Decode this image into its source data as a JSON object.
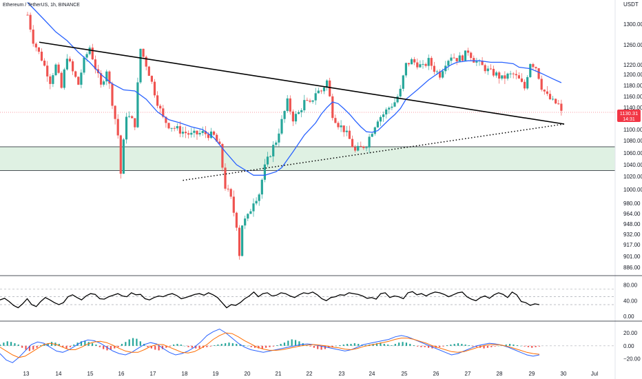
{
  "header": {
    "symbol_title": "Ethereum / TetherUS, 1h, BINANCE",
    "currency": "USDT"
  },
  "price_badge": {
    "price": "1130.31",
    "countdown": "14:31",
    "color": "#f23645"
  },
  "colors": {
    "up": "#26a69a",
    "down": "#ef5350",
    "ma": "#2962ff",
    "zone_fill": "#dff1e3",
    "trendline": "#000000",
    "rsi_line": "#000000",
    "macd_line": "#2962ff",
    "signal_line": "#ff6d00"
  },
  "chart_data": [
    {
      "type": "candlestick",
      "name": "price",
      "y_ticks": [
        "1300.00",
        "1260.00",
        "1220.00",
        "1200.00",
        "1180.00",
        "1160.00",
        "1140.00",
        "1100.00",
        "1080.00",
        "1060.00",
        "1040.00",
        "1020.00",
        "1000.00",
        "980.00",
        "964.00",
        "948.00",
        "932.00",
        "917.00",
        "901.00",
        "886.00"
      ],
      "x_ticks": [
        "13",
        "14",
        "15",
        "16",
        "17",
        "18",
        "19",
        "20",
        "21",
        "22",
        "23",
        "24",
        "25",
        "26",
        "27",
        "28",
        "29",
        "30",
        "Jul"
      ],
      "close_path": [
        [
          0,
          1318
        ],
        [
          2,
          1268
        ],
        [
          5,
          1232
        ],
        [
          8,
          1188
        ],
        [
          10,
          1218
        ],
        [
          12,
          1175
        ],
        [
          14,
          1238
        ],
        [
          16,
          1205
        ],
        [
          18,
          1182
        ],
        [
          20,
          1228
        ],
        [
          22,
          1255
        ],
        [
          24,
          1214
        ],
        [
          26,
          1178
        ],
        [
          28,
          1210
        ],
        [
          30,
          1150
        ],
        [
          32,
          1090
        ],
        [
          33,
          1025
        ],
        [
          35,
          1128
        ],
        [
          38,
          1110
        ],
        [
          40,
          1252
        ],
        [
          42,
          1220
        ],
        [
          44,
          1185
        ],
        [
          46,
          1150
        ],
        [
          48,
          1120
        ],
        [
          50,
          1108
        ],
        [
          54,
          1098
        ],
        [
          58,
          1090
        ],
        [
          62,
          1094
        ],
        [
          66,
          1088
        ],
        [
          68,
          1068
        ],
        [
          70,
          1005
        ],
        [
          72,
          985
        ],
        [
          74,
          948
        ],
        [
          75,
          905
        ],
        [
          76,
          948
        ],
        [
          78,
          958
        ],
        [
          80,
          985
        ],
        [
          82,
          995
        ],
        [
          84,
          1035
        ],
        [
          86,
          1060
        ],
        [
          88,
          1080
        ],
        [
          90,
          1115
        ],
        [
          92,
          1150
        ],
        [
          94,
          1120
        ],
        [
          96,
          1130
        ],
        [
          98,
          1150
        ],
        [
          100,
          1145
        ],
        [
          102,
          1168
        ],
        [
          104,
          1170
        ],
        [
          106,
          1188
        ],
        [
          108,
          1128
        ],
        [
          110,
          1110
        ],
        [
          112,
          1100
        ],
        [
          114,
          1082
        ],
        [
          116,
          1062
        ],
        [
          118,
          1068
        ],
        [
          120,
          1075
        ],
        [
          122,
          1098
        ],
        [
          124,
          1120
        ],
        [
          126,
          1128
        ],
        [
          128,
          1140
        ],
        [
          130,
          1150
        ],
        [
          132,
          1170
        ],
        [
          134,
          1220
        ],
        [
          136,
          1228
        ],
        [
          140,
          1215
        ],
        [
          142,
          1228
        ],
        [
          144,
          1210
        ],
        [
          146,
          1200
        ],
        [
          148,
          1225
        ],
        [
          150,
          1238
        ],
        [
          152,
          1232
        ],
        [
          154,
          1235
        ],
        [
          156,
          1248
        ],
        [
          158,
          1230
        ],
        [
          160,
          1222
        ],
        [
          162,
          1212
        ],
        [
          164,
          1205
        ],
        [
          166,
          1200
        ],
        [
          168,
          1192
        ],
        [
          170,
          1198
        ],
        [
          172,
          1200
        ],
        [
          174,
          1190
        ],
        [
          176,
          1175
        ],
        [
          178,
          1225
        ],
        [
          180,
          1215
        ],
        [
          182,
          1178
        ],
        [
          184,
          1160
        ],
        [
          186,
          1150
        ],
        [
          188,
          1145
        ],
        [
          189,
          1130
        ]
      ],
      "ma_path": [
        [
          0,
          1342
        ],
        [
          6,
          1308
        ],
        [
          10,
          1285
        ],
        [
          14,
          1268
        ],
        [
          18,
          1245
        ],
        [
          22,
          1225
        ],
        [
          26,
          1200
        ],
        [
          30,
          1183
        ],
        [
          34,
          1172
        ],
        [
          38,
          1170
        ],
        [
          42,
          1155
        ],
        [
          46,
          1132
        ],
        [
          50,
          1118
        ],
        [
          54,
          1112
        ],
        [
          58,
          1105
        ],
        [
          62,
          1100
        ],
        [
          66,
          1085
        ],
        [
          70,
          1062
        ],
        [
          74,
          1040
        ],
        [
          78,
          1028
        ],
        [
          80,
          1022
        ],
        [
          84,
          1022
        ],
        [
          88,
          1028
        ],
        [
          90,
          1035
        ],
        [
          94,
          1062
        ],
        [
          98,
          1090
        ],
        [
          102,
          1112
        ],
        [
          104,
          1128
        ],
        [
          106,
          1140
        ],
        [
          108,
          1150
        ],
        [
          110,
          1147
        ],
        [
          112,
          1138
        ],
        [
          114,
          1128
        ],
        [
          116,
          1116
        ],
        [
          118,
          1105
        ],
        [
          120,
          1096
        ],
        [
          122,
          1095
        ],
        [
          124,
          1098
        ],
        [
          126,
          1108
        ],
        [
          128,
          1118
        ],
        [
          130,
          1127
        ],
        [
          132,
          1138
        ],
        [
          134,
          1155
        ],
        [
          138,
          1172
        ],
        [
          142,
          1190
        ],
        [
          146,
          1205
        ],
        [
          150,
          1220
        ],
        [
          152,
          1225
        ],
        [
          156,
          1228
        ],
        [
          160,
          1228
        ],
        [
          164,
          1225
        ],
        [
          168,
          1225
        ],
        [
          172,
          1222
        ],
        [
          174,
          1215
        ],
        [
          178,
          1212
        ],
        [
          182,
          1202
        ],
        [
          186,
          1192
        ],
        [
          189,
          1185
        ]
      ],
      "support_zone": [
        1030,
        1070
      ],
      "resistance_trendline": [
        [
          0,
          1265
        ],
        [
          190,
          1110
        ]
      ],
      "support_trendline": [
        [
          55,
          1014
        ],
        [
          190,
          1110
        ]
      ],
      "ylim": [
        878,
        1360
      ],
      "xlim": [
        -2,
        200
      ]
    },
    {
      "type": "line",
      "name": "RSI",
      "y_ticks": [
        "80.00",
        "40.00",
        "0.00"
      ],
      "levels": [
        70,
        50,
        30
      ],
      "values": [
        42,
        46,
        38,
        28,
        22,
        32,
        45,
        30,
        25,
        38,
        48,
        42,
        35,
        30,
        35,
        50,
        55,
        48,
        42,
        52,
        58,
        56,
        45,
        44,
        50,
        54,
        58,
        52,
        50,
        60,
        55,
        56,
        45,
        42,
        48,
        52,
        50,
        55,
        58,
        53,
        45,
        48,
        52,
        56,
        58,
        54,
        60,
        55,
        48,
        35,
        22,
        30,
        28,
        35,
        45,
        52,
        62,
        50,
        58,
        60,
        52,
        54,
        60,
        58,
        52,
        48,
        55,
        60,
        58,
        62,
        55,
        45,
        40,
        48,
        50,
        55,
        54,
        60,
        58,
        56,
        52,
        46,
        48,
        44,
        58,
        60,
        48,
        52,
        50,
        45,
        60,
        63,
        55,
        58,
        52,
        58,
        62,
        60,
        56,
        50,
        55,
        60,
        62,
        50,
        44,
        40,
        48,
        52,
        46,
        55,
        60,
        56,
        48,
        62,
        55,
        38,
        35,
        28,
        32,
        30
      ],
      "ylim": [
        -5,
        95
      ]
    },
    {
      "type": "macd",
      "name": "MACD",
      "y_ticks": [
        "20.00",
        "0.00",
        "−20.00"
      ],
      "histogram": [
        2,
        5,
        7,
        6,
        4,
        2,
        -3,
        -6,
        -8,
        -6,
        -3,
        1,
        3,
        4,
        6,
        5,
        3,
        -2,
        -4,
        -2,
        2,
        5,
        7,
        8,
        6,
        4,
        2,
        -2,
        -5,
        -7,
        -6,
        -4,
        -2,
        3,
        6,
        10,
        12,
        11,
        7,
        3,
        -2,
        -4,
        -6,
        -7,
        -5,
        -3,
        -1,
        2,
        3,
        2,
        0,
        -2,
        -3,
        -4,
        -4,
        -3,
        -2,
        -1,
        1,
        2,
        3,
        4,
        5,
        4,
        3,
        2,
        1,
        0,
        -2,
        -3,
        -4,
        -5,
        -3,
        -2,
        -1,
        1,
        3,
        5,
        8,
        10,
        9,
        7,
        4,
        1,
        -1,
        -3,
        -5,
        -6,
        -5,
        -3,
        -2,
        0,
        1,
        2,
        3,
        3,
        4,
        3,
        2,
        1,
        2,
        3,
        4,
        5,
        3,
        2,
        1,
        3,
        5,
        6,
        5,
        3,
        1,
        -1,
        -2,
        -2,
        -3,
        -4,
        -3,
        -2,
        -1,
        1,
        2,
        3,
        4,
        3,
        2,
        1,
        -1,
        -2,
        -3,
        -4,
        -3,
        -2,
        -1,
        0,
        1,
        2,
        3,
        2,
        1,
        0,
        -1,
        -2,
        -3,
        -2,
        -1
      ],
      "macd": [
        -12,
        -22,
        -26,
        -18,
        -8,
        2,
        6,
        4,
        -2,
        -8,
        -10,
        -6,
        0,
        6,
        9,
        8,
        4,
        -2,
        -8,
        -12,
        -14,
        -10,
        -4,
        2,
        5,
        3,
        -4,
        -10,
        -14,
        -12,
        -8,
        -2,
        6,
        16,
        22,
        26,
        20,
        12,
        4,
        -2,
        -6,
        -8,
        -10,
        -8,
        -6,
        -4,
        -2,
        0,
        2,
        3,
        2,
        0,
        -2,
        -4,
        -6,
        -8,
        -6,
        -2,
        2,
        4,
        6,
        8,
        10,
        14,
        16,
        14,
        10,
        6,
        2,
        -2,
        -6,
        -10,
        -14,
        -12,
        -8,
        -4,
        0,
        2,
        4,
        3,
        1,
        -2,
        -6,
        -10,
        -14,
        -16,
        -14
      ],
      "signal": [
        -2,
        -8,
        -14,
        -18,
        -16,
        -10,
        -4,
        2,
        4,
        2,
        -2,
        -6,
        -6,
        -2,
        3,
        6,
        7,
        5,
        1,
        -4,
        -8,
        -10,
        -10,
        -6,
        -1,
        2,
        2,
        -2,
        -6,
        -10,
        -11,
        -9,
        -4,
        2,
        10,
        16,
        20,
        19,
        14,
        8,
        3,
        -2,
        -5,
        -7,
        -7,
        -6,
        -4,
        -2,
        0,
        1,
        2,
        1,
        0,
        -2,
        -3,
        -5,
        -6,
        -4,
        -1,
        1,
        3,
        5,
        7,
        10,
        12,
        12,
        10,
        7,
        4,
        0,
        -3,
        -6,
        -9,
        -10,
        -9,
        -6,
        -3,
        0,
        2,
        2,
        1,
        -1,
        -4,
        -7,
        -10,
        -12,
        -13
      ],
      "ylim": [
        -30,
        34
      ]
    }
  ]
}
